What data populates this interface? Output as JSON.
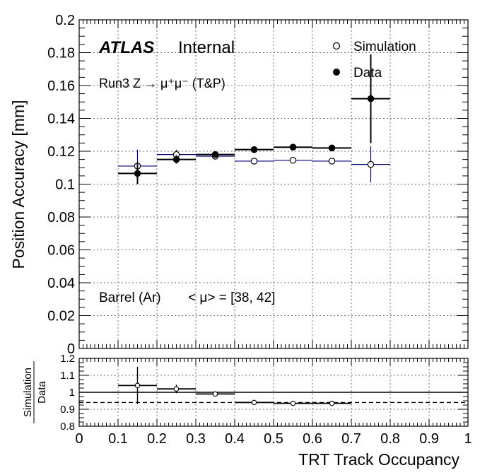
{
  "chart_data": [
    {
      "type": "scatter",
      "experiment": "ATLAS",
      "status": "Internal",
      "process": "Run3 Z → μ⁺μ⁻ (T&P)",
      "region": "Barrel (Ar)",
      "pileup": "< μ> = [38, 42]",
      "ylabel": "Position Accuracy [mm]",
      "ylim": [
        0,
        0.2
      ],
      "yticks": [
        "0",
        "0.02",
        "0.04",
        "0.06",
        "0.08",
        "0.1",
        "0.12",
        "0.14",
        "0.16",
        "0.18",
        "0.2"
      ],
      "grid": true,
      "legend_position": "top-right",
      "series": [
        {
          "name": "Simulation",
          "marker": "open-circle",
          "color": "#000080",
          "points": [
            {
              "x": 0.15,
              "xerr": 0.05,
              "y": 0.111,
              "yerr": 0.01
            },
            {
              "x": 0.25,
              "xerr": 0.05,
              "y": 0.118,
              "yerr": 0.003
            },
            {
              "x": 0.35,
              "xerr": 0.05,
              "y": 0.117,
              "yerr": 0.0015
            },
            {
              "x": 0.45,
              "xerr": 0.05,
              "y": 0.114,
              "yerr": 0.001
            },
            {
              "x": 0.55,
              "xerr": 0.05,
              "y": 0.1145,
              "yerr": 0.001
            },
            {
              "x": 0.65,
              "xerr": 0.05,
              "y": 0.114,
              "yerr": 0.001
            },
            {
              "x": 0.75,
              "xerr": 0.05,
              "y": 0.112,
              "yerr": 0.011
            }
          ]
        },
        {
          "name": "Data",
          "marker": "filled-circle",
          "color": "#000000",
          "points": [
            {
              "x": 0.15,
              "xerr": 0.05,
              "y": 0.1065,
              "yerr": 0.0065
            },
            {
              "x": 0.25,
              "xerr": 0.05,
              "y": 0.115,
              "yerr": 0.0025
            },
            {
              "x": 0.35,
              "xerr": 0.05,
              "y": 0.118,
              "yerr": 0.0015
            },
            {
              "x": 0.45,
              "xerr": 0.05,
              "y": 0.121,
              "yerr": 0.001
            },
            {
              "x": 0.55,
              "xerr": 0.05,
              "y": 0.1225,
              "yerr": 0.001
            },
            {
              "x": 0.65,
              "xerr": 0.05,
              "y": 0.122,
              "yerr": 0.001
            },
            {
              "x": 0.75,
              "xerr": 0.05,
              "y": 0.152,
              "yerr": 0.027
            }
          ]
        }
      ]
    },
    {
      "type": "scatter",
      "ylabel_top": "Simulation",
      "ylabel_bottom": "Data",
      "xlabel": "TRT Track Occupancy",
      "xlim": [
        0,
        1
      ],
      "ylim": [
        0.8,
        1.2
      ],
      "xticks": [
        "0",
        "0.1",
        "0.2",
        "0.3",
        "0.4",
        "0.5",
        "0.6",
        "0.7",
        "0.8",
        "0.9",
        "1"
      ],
      "yticks": [
        "0.8",
        "0.9",
        "1",
        "1.1",
        "1.2"
      ],
      "reference_line": 1.0,
      "dashed_line": 0.94,
      "grid": true,
      "series": [
        {
          "name": "Simulation/Data",
          "marker": "open-circle",
          "color": "#000000",
          "points": [
            {
              "x": 0.15,
              "xerr": 0.05,
              "y": 1.04,
              "yerr": 0.11
            },
            {
              "x": 0.25,
              "xerr": 0.05,
              "y": 1.02,
              "yerr": 0.025
            },
            {
              "x": 0.35,
              "xerr": 0.05,
              "y": 0.99,
              "yerr": 0.01
            },
            {
              "x": 0.45,
              "xerr": 0.05,
              "y": 0.94,
              "yerr": 0.006
            },
            {
              "x": 0.55,
              "xerr": 0.05,
              "y": 0.935,
              "yerr": 0.006
            },
            {
              "x": 0.65,
              "xerr": 0.05,
              "y": 0.935,
              "yerr": 0.006
            }
          ]
        }
      ]
    }
  ]
}
